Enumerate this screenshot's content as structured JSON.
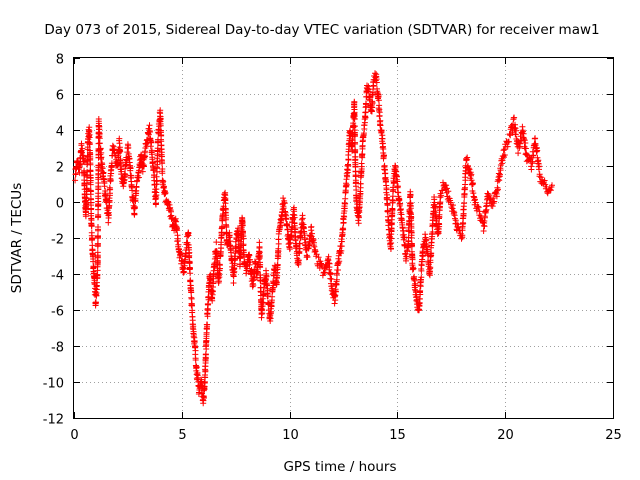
{
  "chart_data": {
    "type": "scatter",
    "title": "Day 073 of 2015, Sidereal Day-to-day VTEC variation (SDTVAR) for receiver maw1",
    "xlabel": "GPS time / hours",
    "ylabel": "SDTVAR / TECUs",
    "xlim": [
      0,
      25
    ],
    "ylim": [
      -12,
      8
    ],
    "xticks": [
      "0",
      "5",
      "10",
      "15",
      "20",
      "25"
    ],
    "yticks": [
      "8",
      "6",
      "4",
      "2",
      "0",
      "-2",
      "-4",
      "-6",
      "-8",
      "-10",
      "-12"
    ],
    "grid": true,
    "marker": "plus",
    "color": "#ff0000",
    "series": [
      {
        "name": "SDTVAR",
        "trace": [
          [
            0.05,
            1.5
          ],
          [
            0.15,
            2.2
          ],
          [
            0.25,
            1.8
          ],
          [
            0.35,
            3.0
          ],
          [
            0.45,
            2.3
          ],
          [
            0.5,
            0.5
          ],
          [
            0.55,
            -0.8
          ],
          [
            0.6,
            1.2
          ],
          [
            0.65,
            3.5
          ],
          [
            0.7,
            4.0
          ],
          [
            0.75,
            2.5
          ],
          [
            0.8,
            -1.0
          ],
          [
            0.85,
            -2.5
          ],
          [
            0.9,
            -3.5
          ],
          [
            0.95,
            -4.5
          ],
          [
            1.0,
            -5.5
          ],
          [
            1.05,
            -4.8
          ],
          [
            1.1,
            -3.5
          ],
          [
            1.15,
            4.5
          ],
          [
            1.2,
            3.2
          ],
          [
            1.3,
            2.0
          ],
          [
            1.4,
            1.0
          ],
          [
            1.5,
            0.0
          ],
          [
            1.6,
            -1.0
          ],
          [
            1.7,
            1.5
          ],
          [
            1.8,
            3.0
          ],
          [
            1.9,
            2.5
          ],
          [
            2.0,
            2.0
          ],
          [
            2.1,
            3.3
          ],
          [
            2.2,
            1.5
          ],
          [
            2.3,
            0.8
          ],
          [
            2.4,
            2.0
          ],
          [
            2.5,
            3.0
          ],
          [
            2.6,
            2.0
          ],
          [
            2.7,
            0.5
          ],
          [
            2.8,
            -0.5
          ],
          [
            2.9,
            1.0
          ],
          [
            3.0,
            1.5
          ],
          [
            3.1,
            2.5
          ],
          [
            3.2,
            1.8
          ],
          [
            3.3,
            2.8
          ],
          [
            3.4,
            3.5
          ],
          [
            3.5,
            4.0
          ],
          [
            3.6,
            3.0
          ],
          [
            3.7,
            1.5
          ],
          [
            3.8,
            0.0
          ],
          [
            3.9,
            3.5
          ],
          [
            4.0,
            5.0
          ],
          [
            4.1,
            1.5
          ],
          [
            4.2,
            0.5
          ],
          [
            4.3,
            0.0
          ],
          [
            4.4,
            -0.3
          ],
          [
            4.5,
            -0.8
          ],
          [
            4.6,
            -1.5
          ],
          [
            4.7,
            -1.0
          ],
          [
            4.8,
            -2.0
          ],
          [
            4.9,
            -2.8
          ],
          [
            5.0,
            -3.3
          ],
          [
            5.1,
            -3.8
          ],
          [
            5.2,
            -2.5
          ],
          [
            5.3,
            -1.8
          ],
          [
            5.4,
            -4.5
          ],
          [
            5.5,
            -6.5
          ],
          [
            5.6,
            -8.0
          ],
          [
            5.7,
            -9.5
          ],
          [
            5.8,
            -10.5
          ],
          [
            5.9,
            -10.0
          ],
          [
            6.0,
            -11.0
          ],
          [
            6.05,
            -10.3
          ],
          [
            6.1,
            -9.0
          ],
          [
            6.15,
            -7.2
          ],
          [
            6.2,
            -6.0
          ],
          [
            6.3,
            -4.0
          ],
          [
            6.4,
            -5.5
          ],
          [
            6.5,
            -3.5
          ],
          [
            6.6,
            -2.5
          ],
          [
            6.7,
            -4.5
          ],
          [
            6.8,
            -3.0
          ],
          [
            6.9,
            -0.5
          ],
          [
            7.0,
            0.5
          ],
          [
            7.1,
            -2.5
          ],
          [
            7.2,
            -1.8
          ],
          [
            7.3,
            -3.0
          ],
          [
            7.4,
            -4.2
          ],
          [
            7.5,
            -2.5
          ],
          [
            7.6,
            -1.5
          ],
          [
            7.7,
            -3.5
          ],
          [
            7.8,
            -0.8
          ],
          [
            7.9,
            -3.5
          ],
          [
            8.0,
            -3.8
          ],
          [
            8.1,
            -3.0
          ],
          [
            8.2,
            -3.8
          ],
          [
            8.3,
            -4.5
          ],
          [
            8.4,
            -3.5
          ],
          [
            8.5,
            -4.0
          ],
          [
            8.6,
            -2.5
          ],
          [
            8.7,
            -6.3
          ],
          [
            8.8,
            -5.0
          ],
          [
            8.9,
            -4.0
          ],
          [
            9.0,
            -5.5
          ],
          [
            9.1,
            -6.5
          ],
          [
            9.2,
            -5.0
          ],
          [
            9.3,
            -3.5
          ],
          [
            9.4,
            -4.5
          ],
          [
            9.5,
            -2.0
          ],
          [
            9.6,
            -1.0
          ],
          [
            9.7,
            0.0
          ],
          [
            9.8,
            -0.5
          ],
          [
            9.9,
            -1.5
          ],
          [
            10.0,
            -2.5
          ],
          [
            10.1,
            -1.5
          ],
          [
            10.2,
            -0.5
          ],
          [
            10.3,
            -2.5
          ],
          [
            10.4,
            -3.5
          ],
          [
            10.5,
            -2.0
          ],
          [
            10.6,
            -1.0
          ],
          [
            10.7,
            -2.0
          ],
          [
            10.8,
            -3.0
          ],
          [
            10.9,
            -2.5
          ],
          [
            11.0,
            -1.5
          ],
          [
            11.2,
            -3.0
          ],
          [
            11.4,
            -3.5
          ],
          [
            11.6,
            -4.0
          ],
          [
            11.8,
            -3.2
          ],
          [
            12.0,
            -5.0
          ],
          [
            12.1,
            -5.5
          ],
          [
            12.2,
            -4.0
          ],
          [
            12.3,
            -3.0
          ],
          [
            12.4,
            -2.5
          ],
          [
            12.5,
            -1.0
          ],
          [
            12.6,
            0.5
          ],
          [
            12.7,
            2.0
          ],
          [
            12.8,
            4.0
          ],
          [
            12.9,
            3.0
          ],
          [
            13.0,
            5.5
          ],
          [
            13.05,
            2.0
          ],
          [
            13.1,
            0.0
          ],
          [
            13.2,
            -1.0
          ],
          [
            13.3,
            1.0
          ],
          [
            13.4,
            3.5
          ],
          [
            13.5,
            4.5
          ],
          [
            13.6,
            6.5
          ],
          [
            13.7,
            6.0
          ],
          [
            13.8,
            5.0
          ],
          [
            13.9,
            6.8
          ],
          [
            14.0,
            7.0
          ],
          [
            14.1,
            6.0
          ],
          [
            14.2,
            4.5
          ],
          [
            14.3,
            3.5
          ],
          [
            14.4,
            2.0
          ],
          [
            14.5,
            0.5
          ],
          [
            14.6,
            -1.5
          ],
          [
            14.7,
            -2.5
          ],
          [
            14.8,
            0.8
          ],
          [
            14.9,
            2.0
          ],
          [
            15.0,
            1.0
          ],
          [
            15.1,
            0.0
          ],
          [
            15.2,
            -1.0
          ],
          [
            15.3,
            -2.0
          ],
          [
            15.4,
            -3.0
          ],
          [
            15.5,
            -2.5
          ],
          [
            15.6,
            0.5
          ],
          [
            15.7,
            -3.5
          ],
          [
            15.8,
            -4.5
          ],
          [
            15.9,
            -5.5
          ],
          [
            16.0,
            -6.2
          ],
          [
            16.1,
            -4.0
          ],
          [
            16.2,
            -2.5
          ],
          [
            16.3,
            -2.0
          ],
          [
            16.4,
            -3.0
          ],
          [
            16.5,
            -4.0
          ],
          [
            16.6,
            -2.0
          ],
          [
            16.7,
            0.0
          ],
          [
            16.8,
            -1.0
          ],
          [
            16.9,
            -1.8
          ],
          [
            17.0,
            0.5
          ],
          [
            17.2,
            1.0
          ],
          [
            17.4,
            0.2
          ],
          [
            17.6,
            -0.5
          ],
          [
            17.8,
            -1.5
          ],
          [
            18.0,
            -2.0
          ],
          [
            18.2,
            2.5
          ],
          [
            18.4,
            1.5
          ],
          [
            18.6,
            0.0
          ],
          [
            18.8,
            -0.5
          ],
          [
            19.0,
            -1.5
          ],
          [
            19.2,
            0.5
          ],
          [
            19.4,
            -0.2
          ],
          [
            19.6,
            0.5
          ],
          [
            19.8,
            2.0
          ],
          [
            20.0,
            3.0
          ],
          [
            20.2,
            3.5
          ],
          [
            20.4,
            4.5
          ],
          [
            20.6,
            3.0
          ],
          [
            20.8,
            4.0
          ],
          [
            21.0,
            2.5
          ],
          [
            21.2,
            2.0
          ],
          [
            21.4,
            3.5
          ],
          [
            21.6,
            1.5
          ],
          [
            21.8,
            1.0
          ],
          [
            22.0,
            0.5
          ],
          [
            22.2,
            1.0
          ]
        ]
      }
    ]
  }
}
